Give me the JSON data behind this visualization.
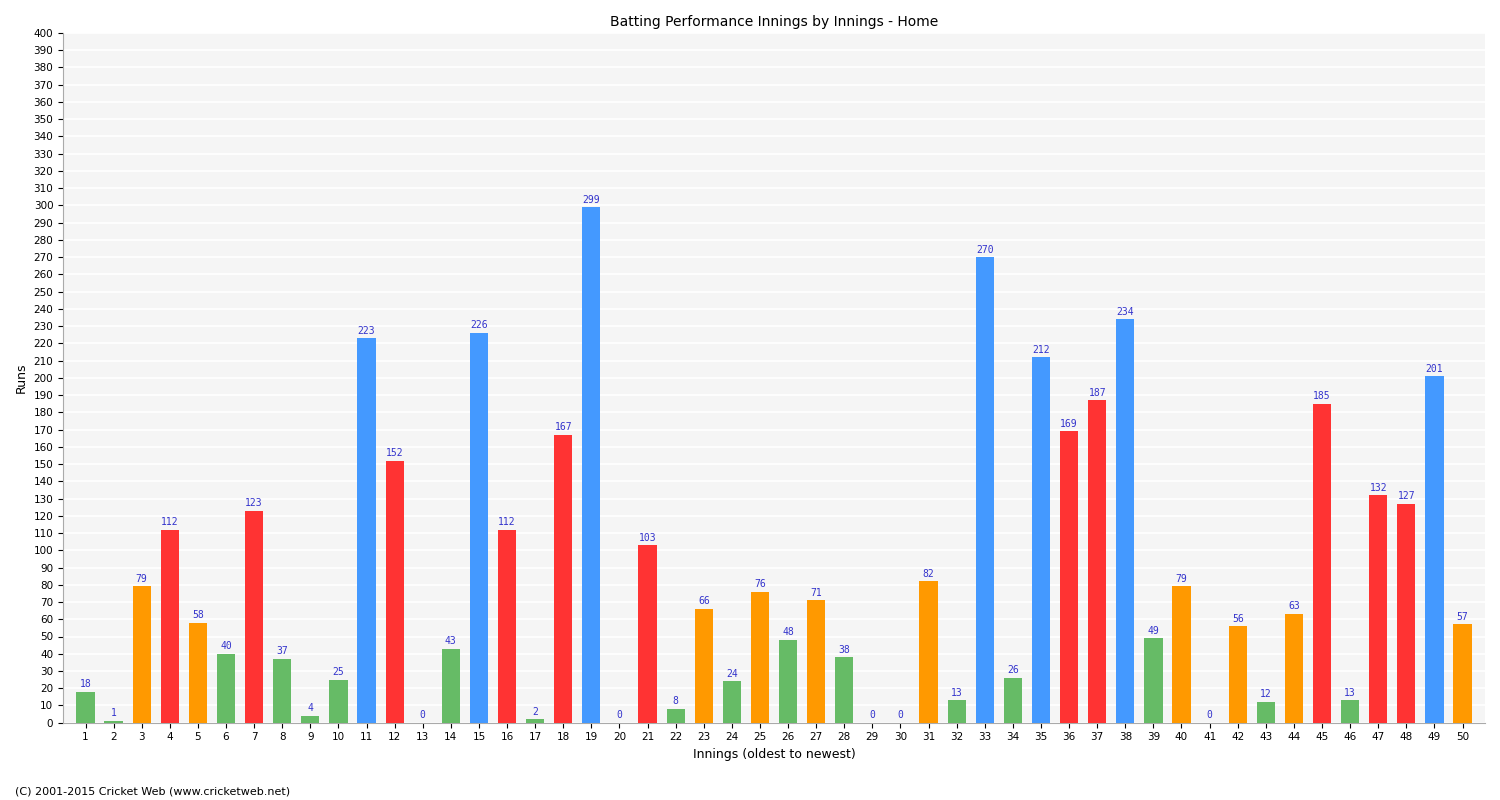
{
  "title": "Batting Performance Innings by Innings - Home",
  "xlabel": "Innings (oldest to newest)",
  "ylabel": "Runs",
  "innings": [
    1,
    2,
    3,
    4,
    5,
    6,
    7,
    8,
    9,
    10,
    11,
    12,
    13,
    14,
    15,
    16,
    17,
    18,
    19,
    20,
    21,
    22,
    23,
    24,
    25,
    26,
    27,
    28,
    29,
    30,
    31,
    32,
    33,
    34,
    35,
    36,
    37,
    38,
    39,
    40,
    41,
    42,
    43,
    44,
    45,
    46,
    47,
    48,
    49,
    50
  ],
  "scores": [
    18,
    1,
    79,
    112,
    58,
    40,
    123,
    37,
    4,
    25,
    223,
    152,
    0,
    43,
    226,
    112,
    2,
    167,
    299,
    0,
    103,
    8,
    66,
    24,
    76,
    48,
    71,
    38,
    0,
    0,
    82,
    13,
    270,
    26,
    212,
    169,
    187,
    234,
    49,
    79,
    0,
    56,
    12,
    63,
    185,
    13,
    132,
    127,
    201,
    57
  ],
  "color_duck": "#66bb66",
  "color_low": "#66bb66",
  "color_fifty": "#ff9900",
  "color_red": "#ff3333",
  "color_hundred": "#4499ff",
  "label_color": "#3333cc",
  "bg_color": "#f5f5f5",
  "grid_color": "#ffffff",
  "footer": "(C) 2001-2015 Cricket Web (www.cricketweb.net)",
  "ylim": [
    0,
    400
  ],
  "ytick_step": 10
}
